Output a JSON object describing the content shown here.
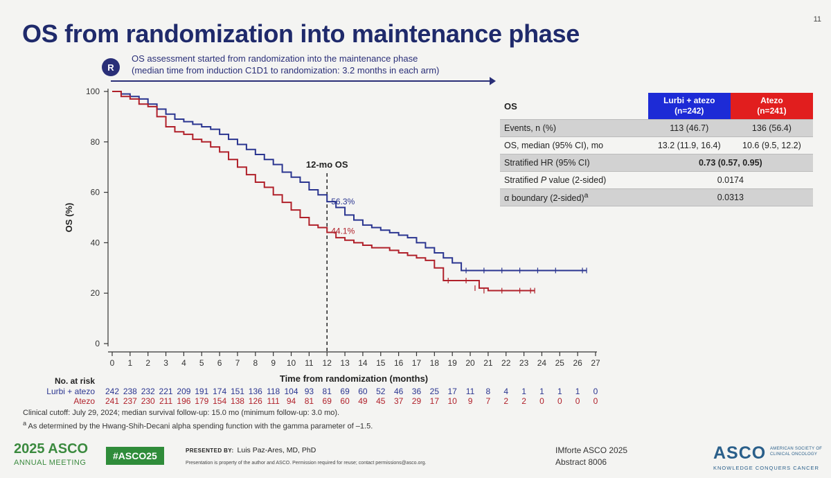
{
  "slide": {
    "title": "OS from randomization into maintenance phase",
    "slide_number": "11",
    "r_badge": "R",
    "note_line1": "OS assessment started from randomization into the maintenance phase",
    "note_line2": "(median time from induction C1D1 to randomization: 3.2 months in each arm)"
  },
  "chart_data": {
    "type": "line",
    "title": "",
    "xlabel": "Time from randomization (months)",
    "ylabel": "OS (%)",
    "xlim": [
      0,
      27
    ],
    "ylim": [
      0,
      100
    ],
    "x_ticks": [
      0,
      1,
      2,
      3,
      4,
      5,
      6,
      7,
      8,
      9,
      10,
      11,
      12,
      13,
      14,
      15,
      16,
      17,
      18,
      19,
      20,
      21,
      22,
      23,
      24,
      25,
      26,
      27
    ],
    "y_ticks": [
      0,
      20,
      40,
      60,
      80,
      100
    ],
    "reference_line": {
      "x": 12,
      "label": "12-mo OS"
    },
    "annotations": [
      {
        "series": "Lurbi + atezo",
        "x": 12,
        "y": 56.3,
        "label": "56.3%"
      },
      {
        "series": "Atezo",
        "x": 12,
        "y": 44.1,
        "label": "44.1%"
      }
    ],
    "series": [
      {
        "name": "Lurbi + atezo",
        "color": "#2a3590",
        "points": [
          [
            0,
            100
          ],
          [
            0.5,
            99
          ],
          [
            1,
            98
          ],
          [
            1.5,
            97
          ],
          [
            2,
            95
          ],
          [
            2.5,
            93
          ],
          [
            3,
            91
          ],
          [
            3.5,
            89
          ],
          [
            4,
            88
          ],
          [
            4.5,
            87
          ],
          [
            5,
            86
          ],
          [
            5.5,
            85
          ],
          [
            6,
            83
          ],
          [
            6.5,
            81
          ],
          [
            7,
            79
          ],
          [
            7.5,
            77
          ],
          [
            8,
            75
          ],
          [
            8.5,
            73
          ],
          [
            9,
            71
          ],
          [
            9.5,
            68
          ],
          [
            10,
            66
          ],
          [
            10.5,
            64
          ],
          [
            11,
            61
          ],
          [
            11.5,
            59
          ],
          [
            12,
            56.3
          ],
          [
            12.5,
            54
          ],
          [
            13,
            51
          ],
          [
            13.5,
            49
          ],
          [
            14,
            47
          ],
          [
            14.5,
            46
          ],
          [
            15,
            45
          ],
          [
            15.5,
            44
          ],
          [
            16,
            43
          ],
          [
            16.5,
            42
          ],
          [
            17,
            40
          ],
          [
            17.5,
            38
          ],
          [
            18,
            36
          ],
          [
            18.5,
            34
          ],
          [
            19,
            32
          ],
          [
            19.5,
            29
          ],
          [
            20,
            29
          ],
          [
            21,
            29
          ],
          [
            22,
            29
          ],
          [
            23,
            29
          ],
          [
            24,
            29
          ],
          [
            25,
            29
          ],
          [
            26.5,
            29
          ]
        ]
      },
      {
        "name": "Atezo",
        "color": "#b0202a",
        "points": [
          [
            0,
            100
          ],
          [
            0.5,
            98
          ],
          [
            1,
            97
          ],
          [
            1.5,
            95
          ],
          [
            2,
            94
          ],
          [
            2.5,
            90
          ],
          [
            3,
            86
          ],
          [
            3.5,
            84
          ],
          [
            4,
            83
          ],
          [
            4.5,
            81
          ],
          [
            5,
            80
          ],
          [
            5.5,
            78
          ],
          [
            6,
            76
          ],
          [
            6.5,
            73
          ],
          [
            7,
            70
          ],
          [
            7.5,
            67
          ],
          [
            8,
            64
          ],
          [
            8.5,
            62
          ],
          [
            9,
            59
          ],
          [
            9.5,
            56
          ],
          [
            10,
            53
          ],
          [
            10.5,
            50
          ],
          [
            11,
            47
          ],
          [
            11.5,
            46
          ],
          [
            12,
            44.1
          ],
          [
            12.5,
            42
          ],
          [
            13,
            41
          ],
          [
            13.5,
            40
          ],
          [
            14,
            39
          ],
          [
            14.5,
            38
          ],
          [
            15,
            38
          ],
          [
            15.5,
            37
          ],
          [
            16,
            36
          ],
          [
            16.5,
            35
          ],
          [
            17,
            34
          ],
          [
            17.5,
            33
          ],
          [
            18,
            30
          ],
          [
            18.5,
            25
          ],
          [
            19,
            25
          ],
          [
            20,
            25
          ],
          [
            20.5,
            22
          ],
          [
            21,
            21
          ],
          [
            22,
            21
          ],
          [
            23,
            21
          ],
          [
            23.6,
            21
          ]
        ]
      }
    ]
  },
  "risk_table": {
    "header": "No. at risk",
    "rows": [
      {
        "name": "Lurbi + atezo",
        "color": "#2a3590",
        "values": [
          "242",
          "238",
          "232",
          "221",
          "209",
          "191",
          "174",
          "151",
          "136",
          "118",
          "104",
          "93",
          "81",
          "69",
          "60",
          "52",
          "46",
          "36",
          "25",
          "17",
          "11",
          "8",
          "4",
          "1",
          "1",
          "1",
          "1",
          "0"
        ]
      },
      {
        "name": "Atezo",
        "color": "#b0202a",
        "values": [
          "241",
          "237",
          "230",
          "211",
          "196",
          "179",
          "154",
          "138",
          "126",
          "111",
          "94",
          "81",
          "69",
          "60",
          "49",
          "45",
          "37",
          "29",
          "17",
          "10",
          "9",
          "7",
          "2",
          "2",
          "0",
          "0",
          "0",
          "0"
        ]
      }
    ]
  },
  "os_table": {
    "header_label": "OS",
    "col1_line1": "Lurbi + atezo",
    "col1_line2": "(n=242)",
    "col2_line1": "Atezo",
    "col2_line2": "(n=241)",
    "rows": [
      {
        "label": "Events, n (%)",
        "v1": "113 (46.7)",
        "v2": "136 (56.4)"
      },
      {
        "label": "OS, median (95% CI), mo",
        "v1": "13.2 (11.9, 16.4)",
        "v2": "10.6 (9.5, 12.2)"
      },
      {
        "label": "Stratified HR (95% CI)",
        "merged": "0.73 (0.57, 0.95)"
      },
      {
        "label_pre": "Stratified ",
        "label_italic": "P",
        "label_post": " value (2-sided)",
        "merged": "0.0174"
      },
      {
        "label_pre": "α boundary (2-sided)",
        "label_sup": "a",
        "merged": "0.0313"
      }
    ]
  },
  "footnotes": {
    "cutoff": "Clinical cutoff: July 29, 2024; median survival follow-up: 15.0 mo (minimum follow-up: 3.0 mo).",
    "alpha_sup": "a",
    "alpha": " As determined by the Hwang-Shih-Decani alpha spending function with the gamma parameter of –1.5."
  },
  "footer": {
    "meeting_year": "2025 ASCO",
    "meeting_sub": "ANNUAL MEETING",
    "hashtag": "#ASCO25",
    "presented_label": "PRESENTED BY:",
    "presenter": "Luis Paz-Ares, MD, PhD",
    "property": "Presentation is property of the author and ASCO. Permission required for reuse; contact permissions@asco.org.",
    "event": "IMforte ASCO 2025",
    "abstract": "Abstract 8006",
    "logo": "ASCO",
    "logo_society": "AMERICAN SOCIETY OF CLINICAL ONCOLOGY",
    "logo_tagline": "KNOWLEDGE CONQUERS CANCER"
  }
}
